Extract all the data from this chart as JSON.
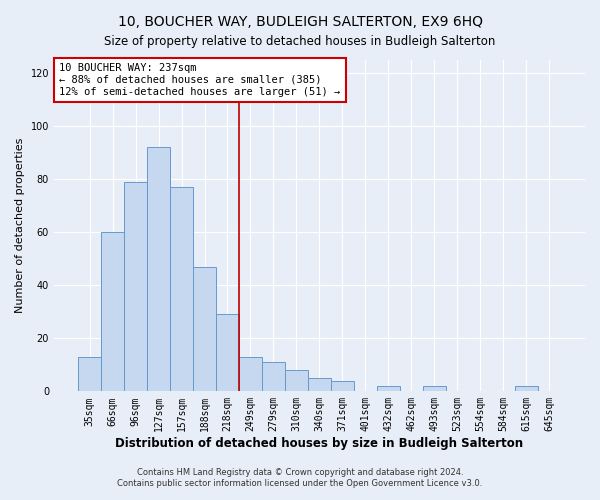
{
  "title": "10, BOUCHER WAY, BUDLEIGH SALTERTON, EX9 6HQ",
  "subtitle": "Size of property relative to detached houses in Budleigh Salterton",
  "xlabel": "Distribution of detached houses by size in Budleigh Salterton",
  "ylabel": "Number of detached properties",
  "bar_labels": [
    "35sqm",
    "66sqm",
    "96sqm",
    "127sqm",
    "157sqm",
    "188sqm",
    "218sqm",
    "249sqm",
    "279sqm",
    "310sqm",
    "340sqm",
    "371sqm",
    "401sqm",
    "432sqm",
    "462sqm",
    "493sqm",
    "523sqm",
    "554sqm",
    "584sqm",
    "615sqm",
    "645sqm"
  ],
  "bar_values": [
    13,
    60,
    79,
    92,
    77,
    47,
    29,
    13,
    11,
    8,
    5,
    4,
    0,
    2,
    0,
    2,
    0,
    0,
    0,
    2,
    0
  ],
  "bar_color": "#c5d8ef",
  "bar_edge_color": "#6699cc",
  "vline_color": "#bb0000",
  "vline_index": 7,
  "annotation_text": "10 BOUCHER WAY: 237sqm\n← 88% of detached houses are smaller (385)\n12% of semi-detached houses are larger (51) →",
  "annotation_box_color": "#ffffff",
  "annotation_box_edge": "#cc0000",
  "ylim": [
    0,
    125
  ],
  "yticks": [
    0,
    20,
    40,
    60,
    80,
    100,
    120
  ],
  "footer1": "Contains HM Land Registry data © Crown copyright and database right 2024.",
  "footer2": "Contains public sector information licensed under the Open Government Licence v3.0.",
  "title_fontsize": 10,
  "subtitle_fontsize": 8.5,
  "xlabel_fontsize": 8.5,
  "ylabel_fontsize": 8,
  "tick_fontsize": 7,
  "annot_fontsize": 7.5,
  "footer_fontsize": 6,
  "background_color": "#e8eef7",
  "plot_bg_color": "#e8eef7"
}
